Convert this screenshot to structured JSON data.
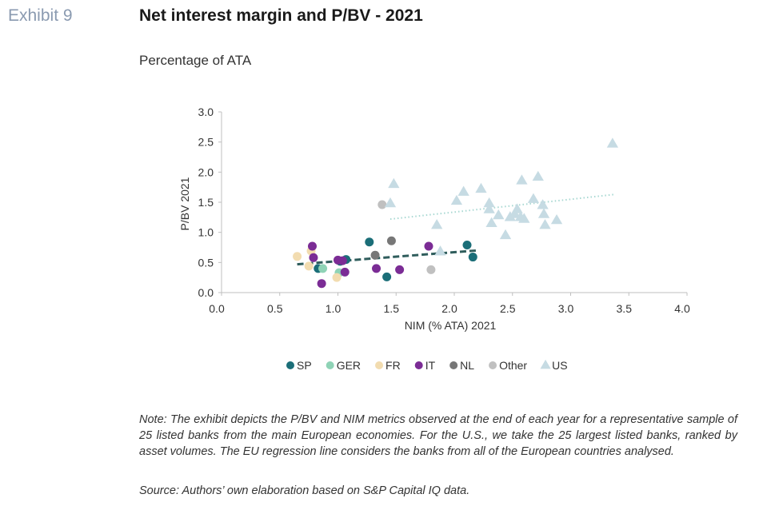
{
  "header": {
    "exhibit": "Exhibit 9",
    "title": "Net interest margin and P/BV - 2021",
    "subtitle": "Percentage of ATA"
  },
  "note": "Note: The exhibit depicts the P/BV and NIM metrics observed at the end of each year for a representative sample of 25 listed banks from the main European economies. For the U.S., we take the 25 largest listed banks, ranked by asset volumes. The EU regression line considers the banks from all of the European countries analysed.",
  "source": "Source: Authors’ own elaboration based on S&P Capital IQ data.",
  "chart_data": {
    "type": "scatter",
    "xlabel": "NIM (% ATA) 2021",
    "ylabel": "P/BV 2021",
    "xlim": [
      0,
      4
    ],
    "ylim": [
      0,
      3
    ],
    "x_ticks": [
      "0.0",
      "0.5",
      "1.0",
      "1.5",
      "2.0",
      "2.5",
      "3.0",
      "3.5",
      "4.0"
    ],
    "y_ticks": [
      "0.0",
      "0.5",
      "1.0",
      "1.5",
      "2.0",
      "2.5",
      "3.0"
    ],
    "legend_position": "bottom",
    "series": [
      {
        "name": "SP",
        "color": "#1b6e78",
        "marker": "circle",
        "points": [
          [
            0.83,
            0.4
          ],
          [
            1.07,
            0.55
          ],
          [
            1.27,
            0.84
          ],
          [
            1.42,
            0.26
          ],
          [
            2.11,
            0.79
          ],
          [
            2.16,
            0.59
          ],
          [
            1.02,
            0.52
          ]
        ]
      },
      {
        "name": "GER",
        "color": "#8fd3b6",
        "marker": "circle",
        "points": [
          [
            0.87,
            0.4
          ],
          [
            1.01,
            0.33
          ]
        ]
      },
      {
        "name": "FR",
        "color": "#f2dcb0",
        "marker": "circle",
        "points": [
          [
            0.65,
            0.6
          ],
          [
            0.75,
            0.44
          ],
          [
            0.77,
            0.69
          ],
          [
            0.99,
            0.25
          ]
        ]
      },
      {
        "name": "IT",
        "color": "#7b2c95",
        "marker": "circle",
        "points": [
          [
            0.78,
            0.77
          ],
          [
            0.79,
            0.58
          ],
          [
            0.86,
            0.15
          ],
          [
            1.0,
            0.54
          ],
          [
            1.04,
            0.53
          ],
          [
            1.06,
            0.34
          ],
          [
            1.33,
            0.4
          ],
          [
            1.53,
            0.38
          ],
          [
            1.78,
            0.77
          ]
        ]
      },
      {
        "name": "NL",
        "color": "#777777",
        "marker": "circle",
        "points": [
          [
            1.46,
            0.86
          ],
          [
            1.32,
            0.62
          ]
        ]
      },
      {
        "name": "Other",
        "color": "#c0c0c0",
        "marker": "circle",
        "points": [
          [
            1.38,
            1.46
          ],
          [
            1.8,
            0.38
          ]
        ]
      },
      {
        "name": "US",
        "color": "#c6dbe3",
        "marker": "triangle",
        "points": [
          [
            1.45,
            1.48
          ],
          [
            1.48,
            1.8
          ],
          [
            1.85,
            1.12
          ],
          [
            1.88,
            0.68
          ],
          [
            2.02,
            1.52
          ],
          [
            2.08,
            1.67
          ],
          [
            2.23,
            1.72
          ],
          [
            2.3,
            1.48
          ],
          [
            2.3,
            1.38
          ],
          [
            2.32,
            1.15
          ],
          [
            2.38,
            1.28
          ],
          [
            2.44,
            0.95
          ],
          [
            2.48,
            1.25
          ],
          [
            2.52,
            1.3
          ],
          [
            2.54,
            1.38
          ],
          [
            2.57,
            1.25
          ],
          [
            2.58,
            1.86
          ],
          [
            2.6,
            1.22
          ],
          [
            2.68,
            1.55
          ],
          [
            2.72,
            1.92
          ],
          [
            2.76,
            1.45
          ],
          [
            2.77,
            1.3
          ],
          [
            2.78,
            1.12
          ],
          [
            2.88,
            1.2
          ],
          [
            3.36,
            2.47
          ]
        ]
      }
    ],
    "trendlines": [
      {
        "name": "EU regression",
        "color": "#2f5d5c",
        "style": "dashed",
        "x": [
          0.65,
          2.2
        ],
        "y": [
          0.47,
          0.7
        ]
      },
      {
        "name": "US regression",
        "color": "#a8d8d2",
        "style": "dotted",
        "x": [
          1.45,
          3.38
        ],
        "y": [
          1.22,
          1.63
        ]
      }
    ]
  }
}
